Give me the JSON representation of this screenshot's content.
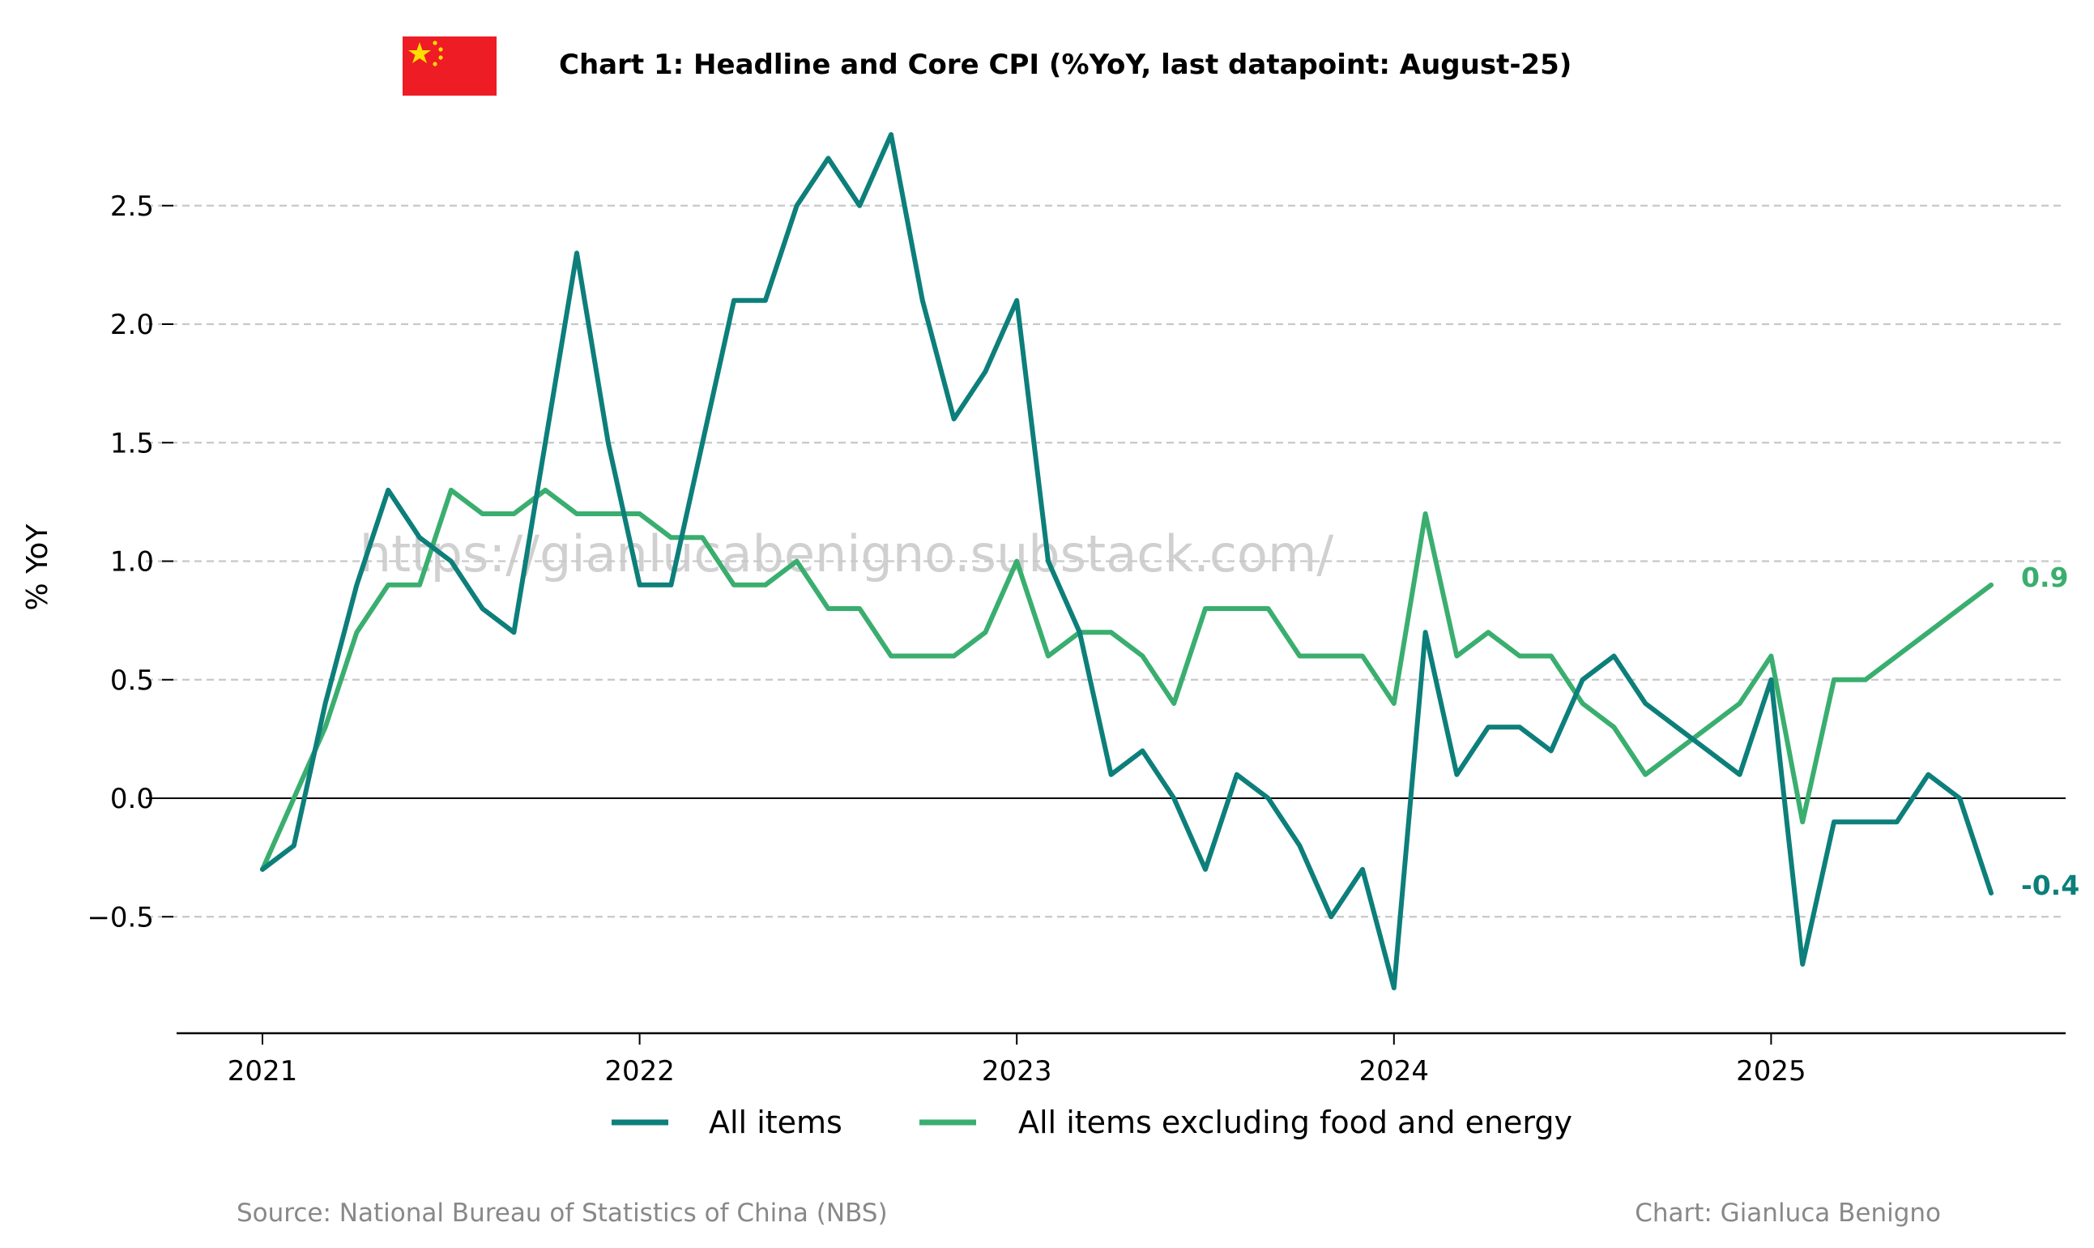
{
  "chart_data": {
    "type": "line",
    "title": "Chart 1: Headline and Core CPI (%YoY, last datapoint: August-25)",
    "ylabel": "% YoY",
    "xlabel": "",
    "x_start": "2021-01",
    "x_tick_labels": [
      "2021",
      "2022",
      "2023",
      "2024",
      "2025"
    ],
    "y_tick_labels": [
      "−0.5",
      "0.0",
      "0.5",
      "1.0",
      "1.5",
      "2.0",
      "2.5"
    ],
    "y_ticks": [
      -0.5,
      0.0,
      0.5,
      1.0,
      1.5,
      2.0,
      2.5
    ],
    "ylim": [
      -0.97,
      2.9
    ],
    "grid": "horizontal-dashed",
    "legend_position": "bottom-center",
    "series": [
      {
        "name": "All items",
        "color": "#0d7f7a",
        "end_label": "-0.4",
        "values": [
          -0.3,
          -0.2,
          0.4,
          0.9,
          1.3,
          1.1,
          1.0,
          0.8,
          0.7,
          1.5,
          2.3,
          1.5,
          0.9,
          0.9,
          1.5,
          2.1,
          2.1,
          2.5,
          2.7,
          2.5,
          2.8,
          2.1,
          1.6,
          1.8,
          2.1,
          1.0,
          0.7,
          0.1,
          0.2,
          0.0,
          -0.3,
          0.1,
          0.0,
          -0.2,
          -0.5,
          -0.3,
          -0.8,
          0.7,
          0.1,
          0.3,
          0.3,
          0.2,
          0.5,
          0.6,
          0.4,
          0.3,
          0.2,
          0.1,
          0.5,
          -0.7,
          -0.1,
          -0.1,
          -0.1,
          0.1,
          0.0,
          -0.4
        ]
      },
      {
        "name": "All items excluding food and energy",
        "color": "#3aae6f",
        "end_label": "0.9",
        "values": [
          -0.3,
          0.0,
          0.3,
          0.7,
          0.9,
          0.9,
          1.3,
          1.2,
          1.2,
          1.3,
          1.2,
          1.2,
          1.2,
          1.1,
          1.1,
          0.9,
          0.9,
          1.0,
          0.8,
          0.8,
          0.6,
          0.6,
          0.6,
          0.7,
          1.0,
          0.6,
          0.7,
          0.7,
          0.6,
          0.4,
          0.8,
          0.8,
          0.8,
          0.6,
          0.6,
          0.6,
          0.4,
          1.2,
          0.6,
          0.7,
          0.6,
          0.6,
          0.4,
          0.3,
          0.1,
          0.2,
          0.3,
          0.4,
          0.6,
          -0.1,
          0.5,
          0.5,
          0.6,
          0.7,
          0.8,
          0.9
        ]
      }
    ]
  },
  "watermark": "https://gianlucabenigno.substack.com/",
  "footer": {
    "source": "Source: National Bureau of Statistics of China (NBS)",
    "credit": "Chart: Gianluca Benigno"
  },
  "flag": {
    "icon": "china-flag-icon",
    "red": "#ee1c25",
    "yellow": "#ffde00"
  },
  "colors": {
    "grid": "#c8c8c8",
    "axis": "#000000",
    "zero_line": "#000000"
  }
}
